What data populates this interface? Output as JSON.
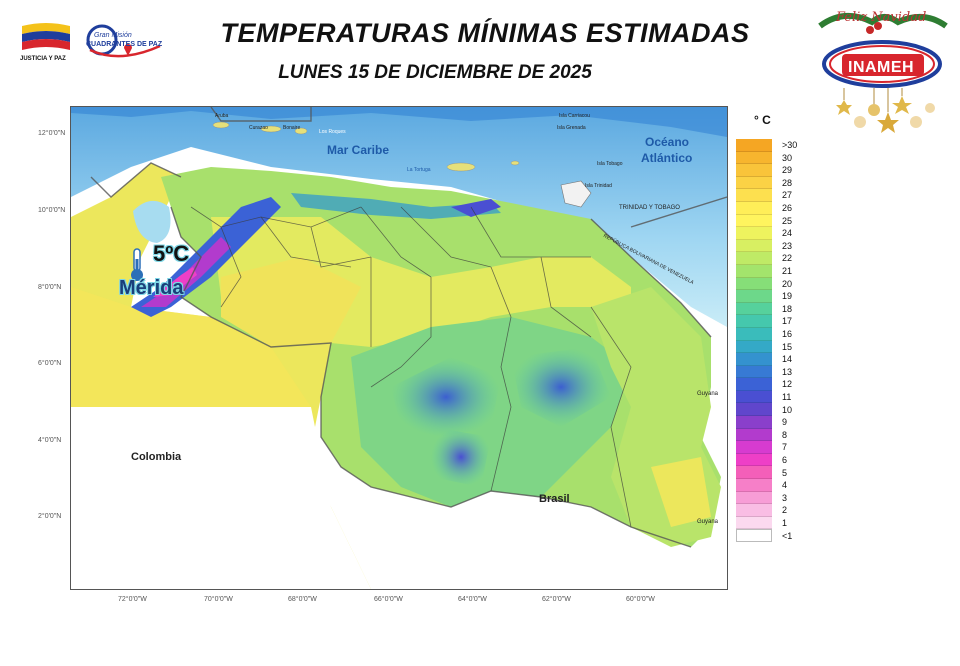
{
  "header": {
    "title": "TEMPERATURAS MÍNIMAS ESTIMADAS",
    "subtitle": "LUNES 15 DE DICIEMBRE DE 2025"
  },
  "logos": {
    "left_caption": "JUSTICIA Y PAZ",
    "mision_line1": "Gran Misión",
    "mision_line2": "CUADRANTES DE PAZ",
    "inameh": "INAMEH",
    "holiday": "Feliz Navidad"
  },
  "map": {
    "labels": {
      "mar_caribe": "Mar Caribe",
      "oceano1": "Océano",
      "oceano2": "Atlántico",
      "colombia": "Colombia",
      "brasil": "Brasil",
      "guyana_esequiba": "GUAYANA ESEQUIBA",
      "trinidad_tobago": "TRINIDAD Y TOBAGO",
      "republica": "REPÚBLICA BOLIVARIANA DE VENEZUELA",
      "guyana1": "Guyana",
      "guyana2": "Guyana",
      "aruba": "Aruba",
      "curazao": "Curazao",
      "bonaire": "Bonaire",
      "los_roques": "Los Roques",
      "la_tortuga": "La Tortuga",
      "isla_carriacou": "Isla Carriacou",
      "isla_grenada": "Isla Grenada",
      "isla_tobago": "Isla Tobago",
      "isla_trinidad": "Isla Trinidad"
    },
    "highlight": {
      "value": "5ºC",
      "city": "Mérida"
    },
    "lat_labels": [
      "12°0'0\"N",
      "10°0'0\"N",
      "8°0'0\"N",
      "6°0'0\"N",
      "4°0'0\"N",
      "2°0'0\"N"
    ],
    "lon_labels": [
      "72°0'0\"W",
      "70°0'0\"W",
      "68°0'0\"W",
      "66°0'0\"W",
      "64°0'0\"W",
      "62°0'0\"W",
      "60°0'0\"W"
    ]
  },
  "legend": {
    "unit": "° C",
    "items": [
      {
        "label": ">30",
        "color": "#f5a623"
      },
      {
        "label": "30",
        "color": "#f7b52e"
      },
      {
        "label": "29",
        "color": "#f9c43a"
      },
      {
        "label": "28",
        "color": "#fbd245"
      },
      {
        "label": "27",
        "color": "#fde04f"
      },
      {
        "label": "26",
        "color": "#ffee58"
      },
      {
        "label": "25",
        "color": "#fff45e"
      },
      {
        "label": "24",
        "color": "#eef35e"
      },
      {
        "label": "23",
        "color": "#d8ef62"
      },
      {
        "label": "22",
        "color": "#bfea66"
      },
      {
        "label": "21",
        "color": "#a3e46c"
      },
      {
        "label": "20",
        "color": "#86de78"
      },
      {
        "label": "19",
        "color": "#6dd88a"
      },
      {
        "label": "18",
        "color": "#56d19c"
      },
      {
        "label": "17",
        "color": "#45c8ad"
      },
      {
        "label": "16",
        "color": "#3abcbb"
      },
      {
        "label": "15",
        "color": "#34a9c7"
      },
      {
        "label": "14",
        "color": "#3492cf"
      },
      {
        "label": "13",
        "color": "#377ad4"
      },
      {
        "label": "12",
        "color": "#3b62d6"
      },
      {
        "label": "11",
        "color": "#4a4fd2"
      },
      {
        "label": "10",
        "color": "#6046cc"
      },
      {
        "label": "9",
        "color": "#8a3fcb"
      },
      {
        "label": "8",
        "color": "#b23bcd"
      },
      {
        "label": "7",
        "color": "#d73bd0"
      },
      {
        "label": "6",
        "color": "#ee3fc7"
      },
      {
        "label": "5",
        "color": "#f45fb9"
      },
      {
        "label": "4",
        "color": "#f67fc8"
      },
      {
        "label": "3",
        "color": "#f79dd6"
      },
      {
        "label": "2",
        "color": "#f9bde4"
      },
      {
        "label": "1",
        "color": "#fbd9ef"
      },
      {
        "label": "<1",
        "color": "#ffffff"
      }
    ]
  }
}
